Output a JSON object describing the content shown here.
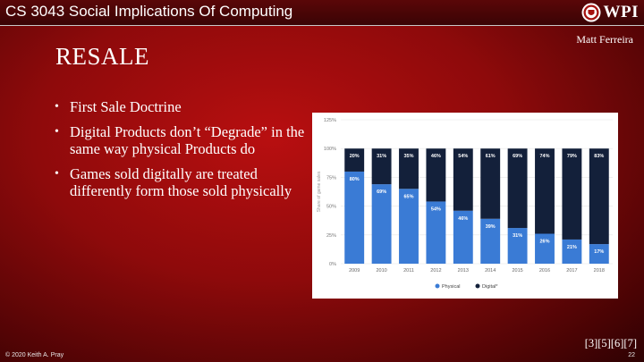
{
  "header": {
    "course_title": "CS 3043 Social Implications Of Computing",
    "logo_text": "WPI",
    "logo_icon": "wpi-seal-icon"
  },
  "author": "Matt Ferreira",
  "slide": {
    "title": "RESALE",
    "bullets": [
      "First Sale Doctrine",
      "Digital Products don’t “Degrade” in the same way physical Products do",
      "Games sold digitally are treated differently form those sold physically"
    ]
  },
  "references": "[3][5][6][7]",
  "footer": {
    "copyright": "© 2020 Keith A. Pray",
    "page_number": "22"
  },
  "colors": {
    "physical": "#3a7bd5",
    "digital": "#13203a"
  },
  "chart_data": {
    "type": "bar",
    "stacked": true,
    "categories": [
      "2009",
      "2010",
      "2011",
      "2012",
      "2013",
      "2014",
      "2015",
      "2016",
      "2017",
      "2018"
    ],
    "series": [
      {
        "name": "Physical",
        "values": [
          80,
          69,
          65,
          54,
          46,
          39,
          31,
          26,
          21,
          17
        ],
        "labels": [
          "80%",
          "69%",
          "65%",
          "54%",
          "46%",
          "39%",
          "31%",
          "26%",
          "21%",
          "17%"
        ]
      },
      {
        "name": "Digital*",
        "values": [
          20,
          31,
          35,
          46,
          54,
          61,
          69,
          74,
          79,
          83
        ],
        "labels": [
          "20%",
          "31%",
          "35%",
          "46%",
          "54%",
          "61%",
          "69%",
          "74%",
          "79%",
          "83%"
        ]
      }
    ],
    "ylabel": "Share of game sales",
    "yticks": [
      "0%",
      "25%",
      "50%",
      "75%",
      "100%",
      "125%"
    ],
    "ylim": [
      0,
      125
    ],
    "legend": "bottom-center"
  }
}
